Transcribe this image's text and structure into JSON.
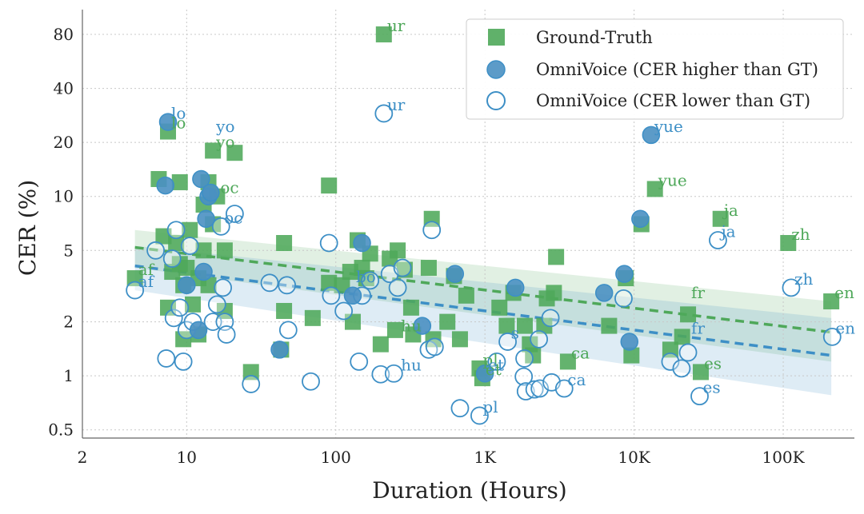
{
  "colors": {
    "gt": "#4fa85a",
    "omni": "#3d8fc6",
    "omni_face": "#4a90c2",
    "grid": "#c8c8c8",
    "axis": "#666666"
  },
  "chart_data": {
    "type": "scatter",
    "xlabel": "Duration (Hours)",
    "ylabel": "CER (%)",
    "xscale": "log",
    "yscale": "log",
    "xlim": [
      2,
      300000
    ],
    "ylim": [
      0.45,
      110
    ],
    "grid": true,
    "legend_position": "top-right",
    "x_ticks": [
      {
        "v": 2,
        "label": "2"
      },
      {
        "v": 10,
        "label": "10"
      },
      {
        "v": 100,
        "label": "100"
      },
      {
        "v": 1000,
        "label": "1K"
      },
      {
        "v": 10000,
        "label": "10K"
      },
      {
        "v": 100000,
        "label": "100K"
      }
    ],
    "y_ticks": [
      {
        "v": 0.5,
        "label": "0.5"
      },
      {
        "v": 1,
        "label": "1"
      },
      {
        "v": 2,
        "label": "2"
      },
      {
        "v": 5,
        "label": "5"
      },
      {
        "v": 10,
        "label": "10"
      },
      {
        "v": 20,
        "label": "20"
      },
      {
        "v": 40,
        "label": "40"
      },
      {
        "v": 80,
        "label": "80"
      }
    ],
    "legend": [
      {
        "name": "Ground-Truth",
        "marker": "square"
      },
      {
        "name": "OmniVoice (CER higher than GT)",
        "marker": "filled-circle"
      },
      {
        "name": "OmniVoice (CER lower than GT)",
        "marker": "open-circle"
      }
    ],
    "series": [
      {
        "name": "Ground-Truth",
        "points": [
          [
            4.5,
            3.5
          ],
          [
            6.5,
            12.5
          ],
          [
            7,
            6
          ],
          [
            7.5,
            23
          ],
          [
            7.5,
            2.4
          ],
          [
            8,
            3.8
          ],
          [
            8.5,
            5.5
          ],
          [
            9,
            12
          ],
          [
            9,
            4.2
          ],
          [
            9.5,
            1.6
          ],
          [
            9.5,
            3.2
          ],
          [
            10,
            4
          ],
          [
            10.5,
            6.5
          ],
          [
            11,
            2.5
          ],
          [
            12,
            1.7
          ],
          [
            12,
            3.5
          ],
          [
            13,
            5
          ],
          [
            13,
            9
          ],
          [
            14,
            12
          ],
          [
            14,
            3.2
          ],
          [
            15,
            18
          ],
          [
            15,
            7
          ],
          [
            16,
            10
          ],
          [
            18,
            5
          ],
          [
            18,
            2.3
          ],
          [
            21,
            17.5
          ],
          [
            27,
            1.05
          ],
          [
            43,
            1.4
          ],
          [
            45,
            5.5
          ],
          [
            45,
            2.3
          ],
          [
            70,
            2.1
          ],
          [
            90,
            11.5
          ],
          [
            90,
            3.3
          ],
          [
            110,
            3.2
          ],
          [
            125,
            3.8
          ],
          [
            130,
            2
          ],
          [
            140,
            5.7
          ],
          [
            150,
            4
          ],
          [
            160,
            3.5
          ],
          [
            170,
            4.8
          ],
          [
            200,
            1.5
          ],
          [
            210,
            80
          ],
          [
            230,
            4.5
          ],
          [
            250,
            1.8
          ],
          [
            260,
            5
          ],
          [
            290,
            3.9
          ],
          [
            320,
            2.4
          ],
          [
            330,
            1.7
          ],
          [
            420,
            4
          ],
          [
            440,
            7.5
          ],
          [
            450,
            1.6
          ],
          [
            560,
            2
          ],
          [
            620,
            3.6
          ],
          [
            680,
            1.6
          ],
          [
            750,
            2.8
          ],
          [
            920,
            1.1
          ],
          [
            960,
            0.97
          ],
          [
            1250,
            2.4
          ],
          [
            1400,
            1.9
          ],
          [
            1550,
            2.9
          ],
          [
            1850,
            1.9
          ],
          [
            2000,
            1.5
          ],
          [
            2100,
            1.3
          ],
          [
            2500,
            1.9
          ],
          [
            2600,
            2.7
          ],
          [
            2900,
            2.9
          ],
          [
            3000,
            4.6
          ],
          [
            3600,
            1.2
          ],
          [
            6800,
            1.9
          ],
          [
            8800,
            3.5
          ],
          [
            9600,
            1.3
          ],
          [
            11200,
            7
          ],
          [
            13800,
            11
          ],
          [
            17500,
            1.4
          ],
          [
            21000,
            1.65
          ],
          [
            23000,
            2.2
          ],
          [
            28000,
            1.05
          ],
          [
            38000,
            7.5
          ],
          [
            108000,
            5.5
          ],
          [
            210000,
            2.6
          ]
        ]
      },
      {
        "name": "OmniVoice (CER higher than GT)",
        "points": [
          [
            7.2,
            11.5
          ],
          [
            7.5,
            26
          ],
          [
            10,
            3.2
          ],
          [
            12,
            1.8
          ],
          [
            12.5,
            12.5
          ],
          [
            13,
            3.8
          ],
          [
            13.5,
            7.5
          ],
          [
            14,
            10
          ],
          [
            14.5,
            10.5
          ],
          [
            42,
            1.4
          ],
          [
            130,
            2.8
          ],
          [
            150,
            5.5
          ],
          [
            380,
            1.9
          ],
          [
            630,
            3.7
          ],
          [
            1000,
            1.03
          ],
          [
            1600,
            3.1
          ],
          [
            6300,
            2.9
          ],
          [
            8600,
            3.7
          ],
          [
            9300,
            1.55
          ],
          [
            11000,
            7.5
          ],
          [
            13000,
            22
          ]
        ]
      },
      {
        "name": "OmniVoice (CER lower than GT)",
        "points": [
          [
            4.5,
            3
          ],
          [
            6.2,
            5
          ],
          [
            7.3,
            1.25
          ],
          [
            8,
            4.5
          ],
          [
            8.2,
            2.1
          ],
          [
            8.5,
            6.5
          ],
          [
            9,
            2.4
          ],
          [
            9.5,
            1.2
          ],
          [
            10,
            1.8
          ],
          [
            10.5,
            5.3
          ],
          [
            11,
            2
          ],
          [
            15,
            2
          ],
          [
            16,
            2.5
          ],
          [
            17,
            6.8
          ],
          [
            17.5,
            3.1
          ],
          [
            18,
            2
          ],
          [
            18.5,
            1.7
          ],
          [
            21,
            8
          ],
          [
            27,
            0.9
          ],
          [
            36,
            3.3
          ],
          [
            47,
            3.2
          ],
          [
            48,
            1.8
          ],
          [
            68,
            0.93
          ],
          [
            90,
            5.5
          ],
          [
            93,
            2.8
          ],
          [
            113,
            2.3
          ],
          [
            143,
            1.2
          ],
          [
            150,
            2.8
          ],
          [
            170,
            3.4
          ],
          [
            200,
            1.02
          ],
          [
            210,
            29
          ],
          [
            230,
            3.7
          ],
          [
            245,
            1.03
          ],
          [
            260,
            3.1
          ],
          [
            280,
            4
          ],
          [
            420,
            1.4
          ],
          [
            440,
            6.5
          ],
          [
            460,
            1.45
          ],
          [
            680,
            0.66
          ],
          [
            920,
            0.6
          ],
          [
            1200,
            1.2
          ],
          [
            1420,
            1.55
          ],
          [
            1820,
            0.99
          ],
          [
            1840,
            1.25
          ],
          [
            1880,
            0.82
          ],
          [
            2150,
            0.84
          ],
          [
            2300,
            1.6
          ],
          [
            2330,
            0.85
          ],
          [
            2750,
            2.1
          ],
          [
            2800,
            0.92
          ],
          [
            3400,
            0.85
          ],
          [
            8500,
            2.7
          ],
          [
            17500,
            1.2
          ],
          [
            20800,
            1.1
          ],
          [
            23000,
            1.35
          ],
          [
            27500,
            0.77
          ],
          [
            36500,
            5.7
          ],
          [
            113000,
            3.1
          ],
          [
            213000,
            1.65
          ]
        ]
      }
    ],
    "trend_lines": [
      {
        "name": "Ground-Truth",
        "x": [
          4.5,
          210000
        ],
        "y": [
          5.2,
          1.75
        ],
        "band_low": [
          4.0,
          1.2
        ],
        "band_high": [
          6.5,
          2.6
        ]
      },
      {
        "name": "OmniVoice",
        "x": [
          4.5,
          210000
        ],
        "y": [
          4.1,
          1.3
        ],
        "band_low": [
          3.0,
          0.78
        ],
        "band_high": [
          5.3,
          2.1
        ]
      }
    ],
    "annotations": [
      {
        "text": "ur",
        "x": 210,
        "y": 80,
        "series": "gt"
      },
      {
        "text": "ur",
        "x": 210,
        "y": 29,
        "series": "omni"
      },
      {
        "text": "lo",
        "x": 7.5,
        "y": 26,
        "series": "omni"
      },
      {
        "text": "lo",
        "x": 7.5,
        "y": 23,
        "series": "gt"
      },
      {
        "text": "yo",
        "x": 15,
        "y": 22,
        "series": "omni"
      },
      {
        "text": "yo",
        "x": 15,
        "y": 18,
        "series": "gt"
      },
      {
        "text": "oc",
        "x": 16,
        "y": 10,
        "series": "gt"
      },
      {
        "text": "oc",
        "x": 17,
        "y": 6.8,
        "series": "omni"
      },
      {
        "text": "af",
        "x": 4.5,
        "y": 3.5,
        "series": "gt"
      },
      {
        "text": "af",
        "x": 4.5,
        "y": 3.0,
        "series": "omni"
      },
      {
        "text": "hu",
        "x": 260,
        "y": 1.7,
        "series": "gt"
      },
      {
        "text": "hu",
        "x": 260,
        "y": 1.03,
        "series": "omni"
      },
      {
        "text": "pl",
        "x": 920,
        "y": 1.1,
        "series": "gt"
      },
      {
        "text": "pl",
        "x": 920,
        "y": 0.6,
        "series": "omni"
      },
      {
        "text": "et",
        "x": 960,
        "y": 0.97,
        "series": "gt"
      },
      {
        "text": "et",
        "x": 1000,
        "y": 1.03,
        "series": "omni"
      },
      {
        "text": "ca",
        "x": 3600,
        "y": 1.2,
        "series": "gt"
      },
      {
        "text": "ca",
        "x": 3400,
        "y": 0.85,
        "series": "omni"
      },
      {
        "text": "yue",
        "x": 13000,
        "y": 22,
        "series": "omni"
      },
      {
        "text": "yue",
        "x": 13800,
        "y": 11,
        "series": "gt"
      },
      {
        "text": "ja",
        "x": 38000,
        "y": 7.5,
        "series": "gt"
      },
      {
        "text": "ja",
        "x": 36500,
        "y": 5.7,
        "series": "omni"
      },
      {
        "text": "zh",
        "x": 108000,
        "y": 5.5,
        "series": "gt"
      },
      {
        "text": "zh",
        "x": 113000,
        "y": 3.1,
        "series": "omni"
      },
      {
        "text": "fr",
        "x": 23000,
        "y": 2.6,
        "series": "gt"
      },
      {
        "text": "fr",
        "x": 23000,
        "y": 1.65,
        "series": "omni"
      },
      {
        "text": "es",
        "x": 28000,
        "y": 1.05,
        "series": "gt"
      },
      {
        "text": "es",
        "x": 27500,
        "y": 0.77,
        "series": "omni"
      },
      {
        "text": "en",
        "x": 210000,
        "y": 2.6,
        "series": "gt"
      },
      {
        "text": "en",
        "x": 213000,
        "y": 1.65,
        "series": "omni"
      },
      {
        "text": "s",
        "x": 1420,
        "y": 1.55,
        "series": "omni"
      },
      {
        "text": "bo",
        "x": 130,
        "y": 3.2,
        "series": "omni"
      }
    ]
  }
}
